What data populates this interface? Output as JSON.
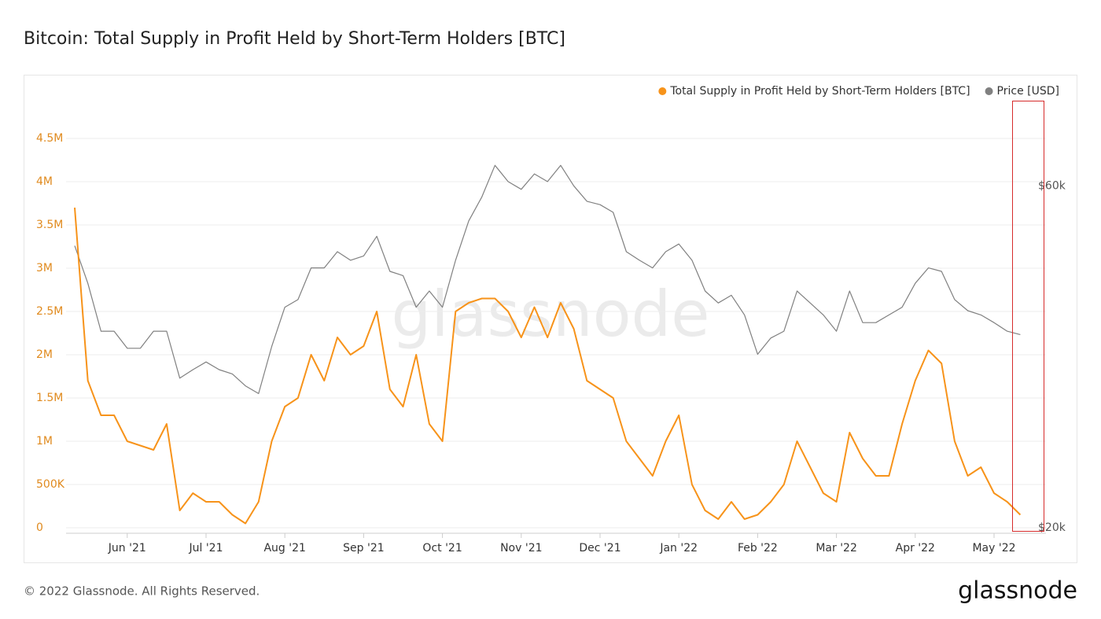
{
  "chart_data": {
    "type": "line",
    "title": "Bitcoin: Total Supply in Profit Held by Short-Term Holders [BTC]",
    "watermark": "glassnode",
    "categories": [
      null,
      null,
      null,
      null,
      "Jun '21",
      null,
      null,
      null,
      null,
      null,
      "Jul '21",
      null,
      null,
      null,
      null,
      null,
      "Aug '21",
      null,
      null,
      null,
      null,
      null,
      "Sep '21",
      null,
      null,
      null,
      null,
      null,
      "Oct '21",
      null,
      null,
      null,
      null,
      null,
      "Nov '21",
      null,
      null,
      null,
      null,
      null,
      "Dec '21",
      null,
      null,
      null,
      null,
      null,
      "Jan '22",
      null,
      null,
      null,
      null,
      null,
      "Feb '22",
      null,
      null,
      null,
      null,
      null,
      "Mar '22",
      null,
      null,
      null,
      null,
      null,
      "Apr '22",
      null,
      null,
      null,
      null,
      null,
      "May '22",
      null,
      null
    ],
    "series": [
      {
        "name": "Total Supply in Profit Held by Short-Term Holders [BTC]",
        "color": "#f7931a",
        "values": [
          3700000,
          1700000,
          1300000,
          1300000,
          1000000,
          950000,
          900000,
          1200000,
          200000,
          400000,
          300000,
          300000,
          150000,
          50000,
          300000,
          1000000,
          1400000,
          1500000,
          2000000,
          1700000,
          2200000,
          2000000,
          2100000,
          2500000,
          1600000,
          1400000,
          2000000,
          1200000,
          1000000,
          2500000,
          2600000,
          2650000,
          2650000,
          2500000,
          2200000,
          2550000,
          2200000,
          2600000,
          2300000,
          1700000,
          1600000,
          1500000,
          1000000,
          800000,
          600000,
          1000000,
          1300000,
          500000,
          200000,
          100000,
          300000,
          100000,
          150000,
          300000,
          500000,
          1000000,
          700000,
          400000,
          300000,
          1100000,
          800000,
          600000,
          600000,
          1200000,
          1700000,
          2050000,
          1900000,
          1000000,
          600000,
          700000,
          400000,
          300000,
          150000
        ]
      },
      {
        "name": "Price [USD]",
        "color": "#808080",
        "axis": "y2",
        "values": [
          53000,
          48600,
          43000,
          43000,
          41000,
          41000,
          43000,
          43000,
          37500,
          38500,
          39400,
          38500,
          38000,
          36600,
          35700,
          41200,
          45800,
          46700,
          50400,
          50400,
          52300,
          51300,
          51800,
          54100,
          50000,
          49500,
          45800,
          47700,
          45800,
          51300,
          55900,
          58700,
          62400,
          60500,
          59600,
          61400,
          60500,
          62400,
          60000,
          58200,
          57800,
          56900,
          52300,
          51300,
          50400,
          52300,
          53200,
          51300,
          47700,
          46300,
          47200,
          44900,
          40300,
          42200,
          43000,
          47700,
          46300,
          44900,
          43000,
          47700,
          44000,
          44000,
          44900,
          45800,
          48600,
          50400,
          50000,
          46700,
          45400,
          44900,
          44000,
          43000,
          42600
        ]
      }
    ],
    "ylim": [
      0,
      4900000
    ],
    "yticks": [
      0,
      {
        "value": 500000,
        "label": "500K"
      },
      {
        "value": 1000000,
        "label": "1M"
      },
      {
        "value": 1500000,
        "label": "1.5M"
      },
      {
        "value": 2000000,
        "label": "2M"
      },
      {
        "value": 2500000,
        "label": "2.5M"
      },
      {
        "value": 3000000,
        "label": "3M"
      },
      {
        "value": 3500000,
        "label": "3.5M"
      },
      {
        "value": 4000000,
        "label": "4M"
      },
      {
        "value": 4500000,
        "label": "4.5M"
      }
    ],
    "y2lim": [
      20000,
      69600
    ],
    "y2ticks": [
      {
        "value": 20000,
        "label": "$20k"
      },
      {
        "value": 60000,
        "label": "$60k"
      }
    ],
    "grid": true,
    "legend": "top-right"
  },
  "footer": {
    "copyright": "© 2022 Glassnode. All Rights Reserved.",
    "logo": "glassnode"
  }
}
